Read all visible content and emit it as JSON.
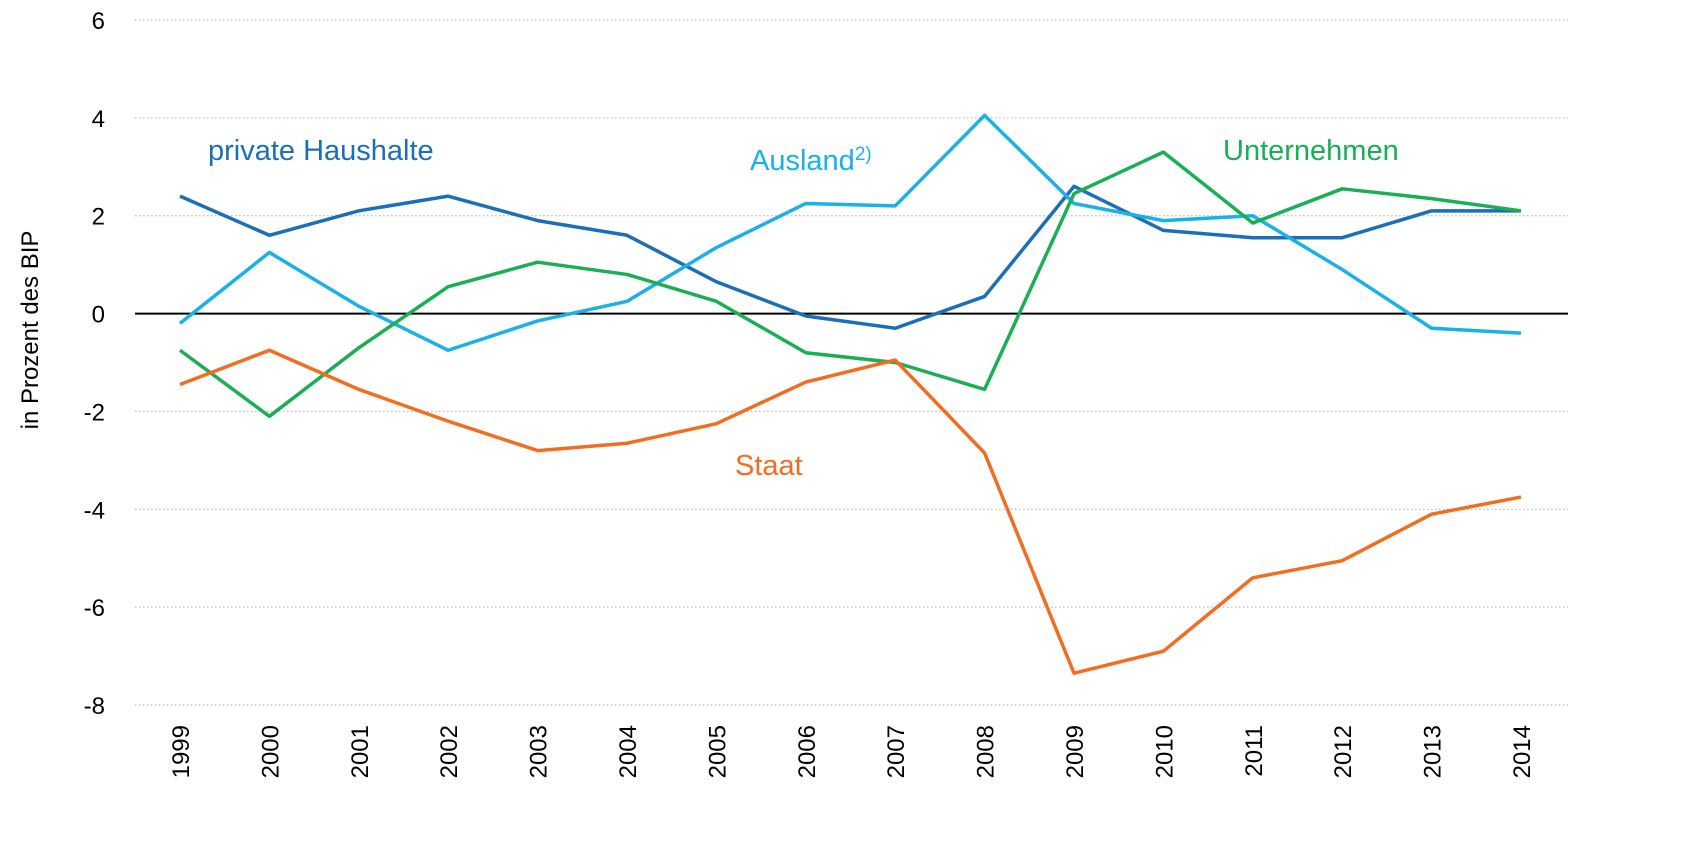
{
  "chart_data": {
    "type": "line",
    "y_label": "in Prozent des BIP",
    "categories": [
      "1999",
      "2000",
      "2001",
      "2002",
      "2003",
      "2004",
      "2005",
      "2006",
      "2007",
      "2008",
      "2009",
      "2010",
      "2011",
      "2012",
      "2013",
      "2014"
    ],
    "series": [
      {
        "name": "private Haushalte",
        "color": "#1b6fb8",
        "values": [
          2.4,
          1.6,
          2.1,
          2.4,
          1.9,
          1.6,
          0.65,
          -0.05,
          -0.3,
          0.35,
          2.6,
          1.7,
          1.55,
          1.55,
          2.1,
          2.1
        ]
      },
      {
        "name": "Ausland",
        "footnote": "2)",
        "color": "#1ab0e8",
        "values": [
          -0.2,
          1.25,
          0.15,
          -0.75,
          -0.15,
          0.25,
          1.35,
          2.25,
          2.2,
          4.05,
          2.25,
          1.9,
          2.0,
          0.9,
          -0.3,
          -0.4
        ]
      },
      {
        "name": "Unternehmen",
        "color": "#1aaf54",
        "values": [
          -0.75,
          -2.1,
          -0.7,
          0.55,
          1.05,
          0.8,
          0.25,
          -0.8,
          -1.0,
          -1.55,
          2.45,
          3.3,
          1.85,
          2.55,
          2.35,
          2.1
        ]
      },
      {
        "name": "Staat",
        "color": "#f36d21",
        "values": [
          -1.45,
          -0.75,
          -1.55,
          -2.2,
          -2.8,
          -2.65,
          -2.25,
          -1.4,
          -0.95,
          -2.85,
          -7.35,
          -6.9,
          -5.4,
          -5.05,
          -4.1,
          -3.75
        ]
      }
    ],
    "ylim": [
      -8,
      6
    ],
    "yticks": [
      -8,
      -6,
      -4,
      -2,
      0,
      2,
      4,
      6
    ],
    "grid": true
  }
}
